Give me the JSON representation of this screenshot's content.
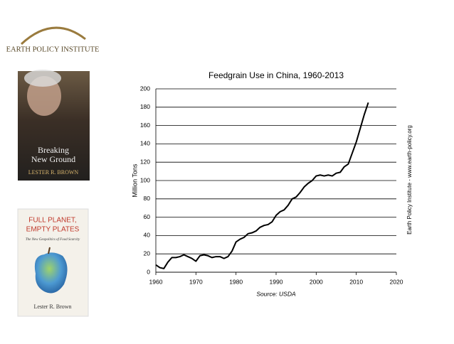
{
  "logo": {
    "text": "EARTH POLICY INSTITUTE"
  },
  "books": [
    {
      "title_lines": [
        "Breaking",
        "New Ground"
      ],
      "author": "LESTER R. BROWN"
    },
    {
      "title_lines": [
        "FULL PLANET,",
        "EMPTY PLATES"
      ],
      "subtitle": "The New Geopolitics of Food Scarcity",
      "author": "Lester R. Brown"
    }
  ],
  "chart_data": {
    "type": "line",
    "title": "Feedgrain Use in China, 1960-2013",
    "x": [
      1960,
      1961,
      1962,
      1963,
      1964,
      1965,
      1966,
      1967,
      1968,
      1969,
      1970,
      1971,
      1972,
      1973,
      1974,
      1975,
      1976,
      1977,
      1978,
      1979,
      1980,
      1981,
      1982,
      1983,
      1984,
      1985,
      1986,
      1987,
      1988,
      1989,
      1990,
      1991,
      1992,
      1993,
      1994,
      1995,
      1996,
      1997,
      1998,
      1999,
      2000,
      2001,
      2002,
      2003,
      2004,
      2005,
      2006,
      2007,
      2008,
      2009,
      2010,
      2011,
      2012,
      2013
    ],
    "values": [
      8,
      5,
      4,
      11,
      16,
      16,
      17,
      19,
      17,
      15,
      12,
      18,
      19,
      18,
      16,
      17,
      17,
      15,
      17,
      23,
      33,
      36,
      38,
      42,
      43,
      45,
      49,
      51,
      52,
      55,
      62,
      66,
      68,
      73,
      80,
      82,
      87,
      93,
      97,
      100,
      105,
      106,
      105,
      106,
      105,
      108,
      109,
      115,
      118,
      130,
      142,
      157,
      172,
      185
    ],
    "color": "#000000",
    "xlim": [
      1960,
      2020
    ],
    "xticks": [
      1960,
      1970,
      1980,
      1990,
      2000,
      2010,
      2020
    ],
    "ylim": [
      0,
      200
    ],
    "yticks": [
      0,
      20,
      40,
      60,
      80,
      100,
      120,
      140,
      160,
      180,
      200
    ],
    "ylabel": "Million Tons",
    "source": "Source: USDA",
    "side_note": "Earth Policy Institute - www.earth-policy.org",
    "grid": true
  }
}
